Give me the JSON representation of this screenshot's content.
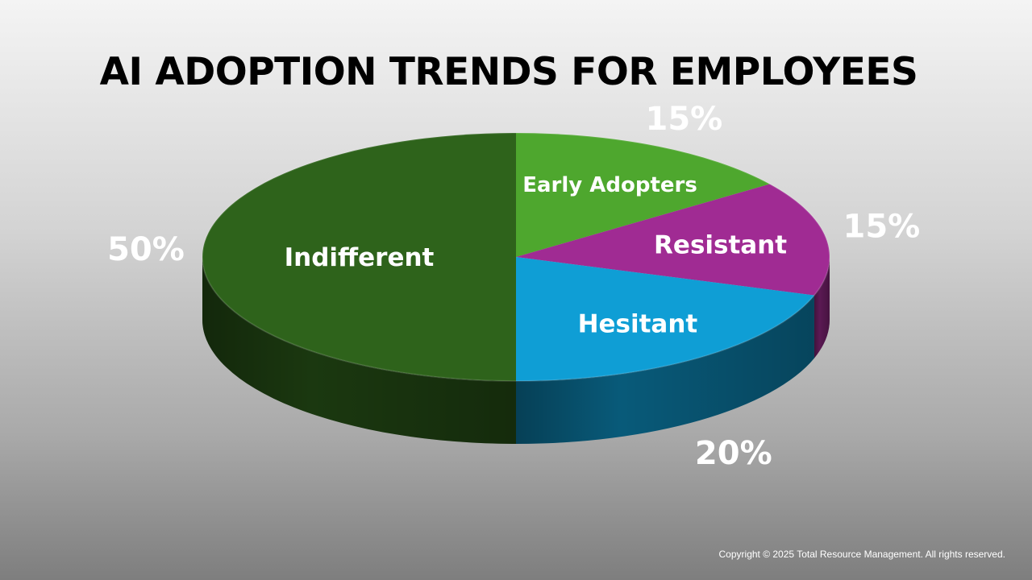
{
  "slide": {
    "title": "AI ADOPTION TRENDS FOR EMPLOYEES",
    "copyright": "Copyright © 2025 Total Resource Management. All rights reserved."
  },
  "chart_data": {
    "type": "pie",
    "title": "AI ADOPTION TRENDS FOR EMPLOYEES",
    "style": "3d",
    "data_labels": "percent outside, category inside",
    "legend": "none",
    "slices": [
      {
        "label": "Early Adopters",
        "value": 15,
        "percent_label": "15%",
        "color": "#4ea72e"
      },
      {
        "label": "Resistant",
        "value": 15,
        "percent_label": "15%",
        "color": "#a02b93"
      },
      {
        "label": "Hesitant",
        "value": 20,
        "percent_label": "20%",
        "color": "#0f9ed5"
      },
      {
        "label": "Indifferent",
        "value": 50,
        "percent_label": "50%",
        "color": "#2e631b"
      }
    ]
  }
}
